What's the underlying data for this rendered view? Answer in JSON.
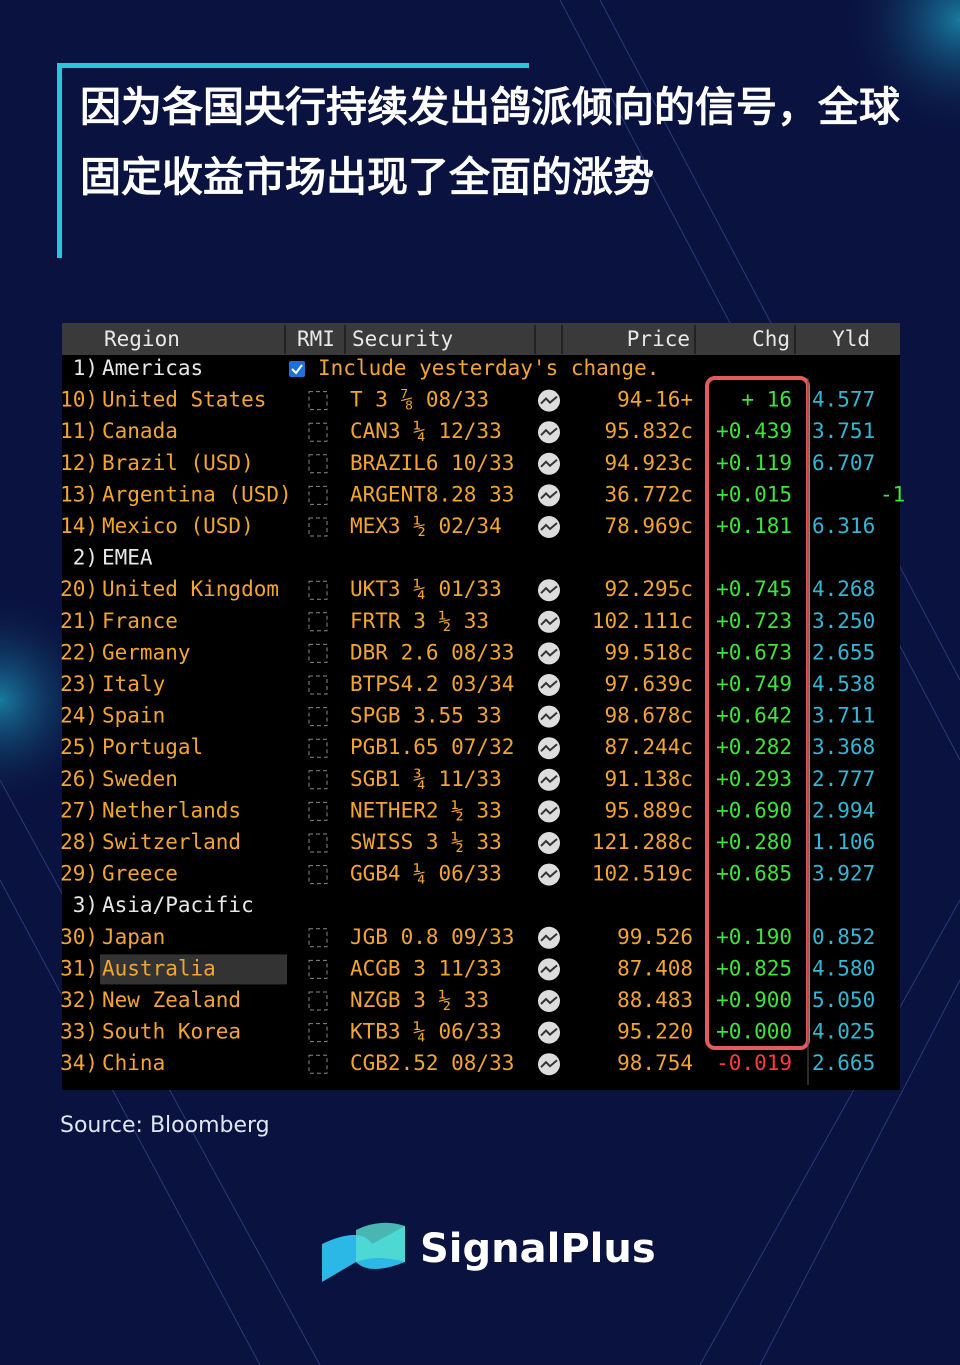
{
  "header": {
    "title": "因为各国央行持续发出鸽派倾向的信号，全球固定收益市场出现了全面的涨势"
  },
  "table": {
    "columns": [
      "Region",
      "RMI",
      "Security",
      "Price",
      "Chg",
      "Yld"
    ],
    "note": "Include yesterday's change.",
    "groups": [
      {
        "num": "1)",
        "name": "Americas",
        "rows": [
          {
            "num": "10)",
            "region": "United States",
            "security": "T 3 ⅞ 08/33",
            "price": "94-16+",
            "chg": "+ 16",
            "yld": "4.577"
          },
          {
            "num": "11)",
            "region": "Canada",
            "security": "CAN3 ¼ 12/33",
            "price": "95.832c",
            "chg": "+0.439",
            "yld": "3.751"
          },
          {
            "num": "12)",
            "region": "Brazil (USD)",
            "security": "BRAZIL6 10/33",
            "price": "94.923c",
            "chg": "+0.119",
            "yld": "6.707"
          },
          {
            "num": "13)",
            "region": "Argentina (USD)",
            "security": "ARGENT8.28 33",
            "price": "36.772c",
            "chg": "+0.015",
            "yld": null,
            "extra": "-1"
          },
          {
            "num": "14)",
            "region": "Mexico (USD)",
            "security": "MEX3 ½ 02/34",
            "price": "78.969c",
            "chg": "+0.181",
            "yld": "6.316"
          }
        ]
      },
      {
        "num": "2)",
        "name": "EMEA",
        "rows": [
          {
            "num": "20)",
            "region": "United Kingdom",
            "security": "UKT3 ¼ 01/33",
            "price": "92.295c",
            "chg": "+0.745",
            "yld": "4.268"
          },
          {
            "num": "21)",
            "region": "France",
            "security": "FRTR 3 ½ 33",
            "price": "102.111c",
            "chg": "+0.723",
            "yld": "3.250"
          },
          {
            "num": "22)",
            "region": "Germany",
            "security": "DBR 2.6 08/33",
            "price": "99.518c",
            "chg": "+0.673",
            "yld": "2.655"
          },
          {
            "num": "23)",
            "region": "Italy",
            "security": "BTPS4.2 03/34",
            "price": "97.639c",
            "chg": "+0.749",
            "yld": "4.538"
          },
          {
            "num": "24)",
            "region": "Spain",
            "security": "SPGB 3.55 33",
            "price": "98.678c",
            "chg": "+0.642",
            "yld": "3.711"
          },
          {
            "num": "25)",
            "region": "Portugal",
            "security": "PGB1.65 07/32",
            "price": "87.244c",
            "chg": "+0.282",
            "yld": "3.368"
          },
          {
            "num": "26)",
            "region": "Sweden",
            "security": "SGB1 ¾ 11/33",
            "price": "91.138c",
            "chg": "+0.293",
            "yld": "2.777"
          },
          {
            "num": "27)",
            "region": "Netherlands",
            "security": "NETHER2 ½ 33",
            "price": "95.889c",
            "chg": "+0.690",
            "yld": "2.994"
          },
          {
            "num": "28)",
            "region": "Switzerland",
            "security": "SWISS 3 ½ 33",
            "price": "121.288c",
            "chg": "+0.280",
            "yld": "1.106"
          },
          {
            "num": "29)",
            "region": "Greece",
            "security": "GGB4 ¼ 06/33",
            "price": "102.519c",
            "chg": "+0.685",
            "yld": "3.927"
          }
        ]
      },
      {
        "num": "3)",
        "name": "Asia/Pacific",
        "rows": [
          {
            "num": "30)",
            "region": "Japan",
            "security": "JGB 0.8 09/33",
            "price": "99.526",
            "chg": "+0.190",
            "yld": "0.852"
          },
          {
            "num": "31)",
            "region": "Australia",
            "security": "ACGB 3 11/33",
            "price": "87.408",
            "chg": "+0.825",
            "yld": "4.580",
            "selected": true
          },
          {
            "num": "32)",
            "region": "New Zealand",
            "security": "NZGB 3 ½ 33",
            "price": "88.483",
            "chg": "+0.900",
            "yld": "5.050"
          },
          {
            "num": "33)",
            "region": "South Korea",
            "security": "KTB3 ¼ 06/33",
            "price": "95.220",
            "chg": "+0.000",
            "yld": "4.025"
          },
          {
            "num": "34)",
            "region": "China",
            "security": "CGB2.52 08/33",
            "price": "98.754",
            "chg": "-0.019",
            "yld": "2.665"
          }
        ]
      }
    ]
  },
  "source": "Source: Bloomberg",
  "logo": {
    "text": "SignalPlus"
  }
}
